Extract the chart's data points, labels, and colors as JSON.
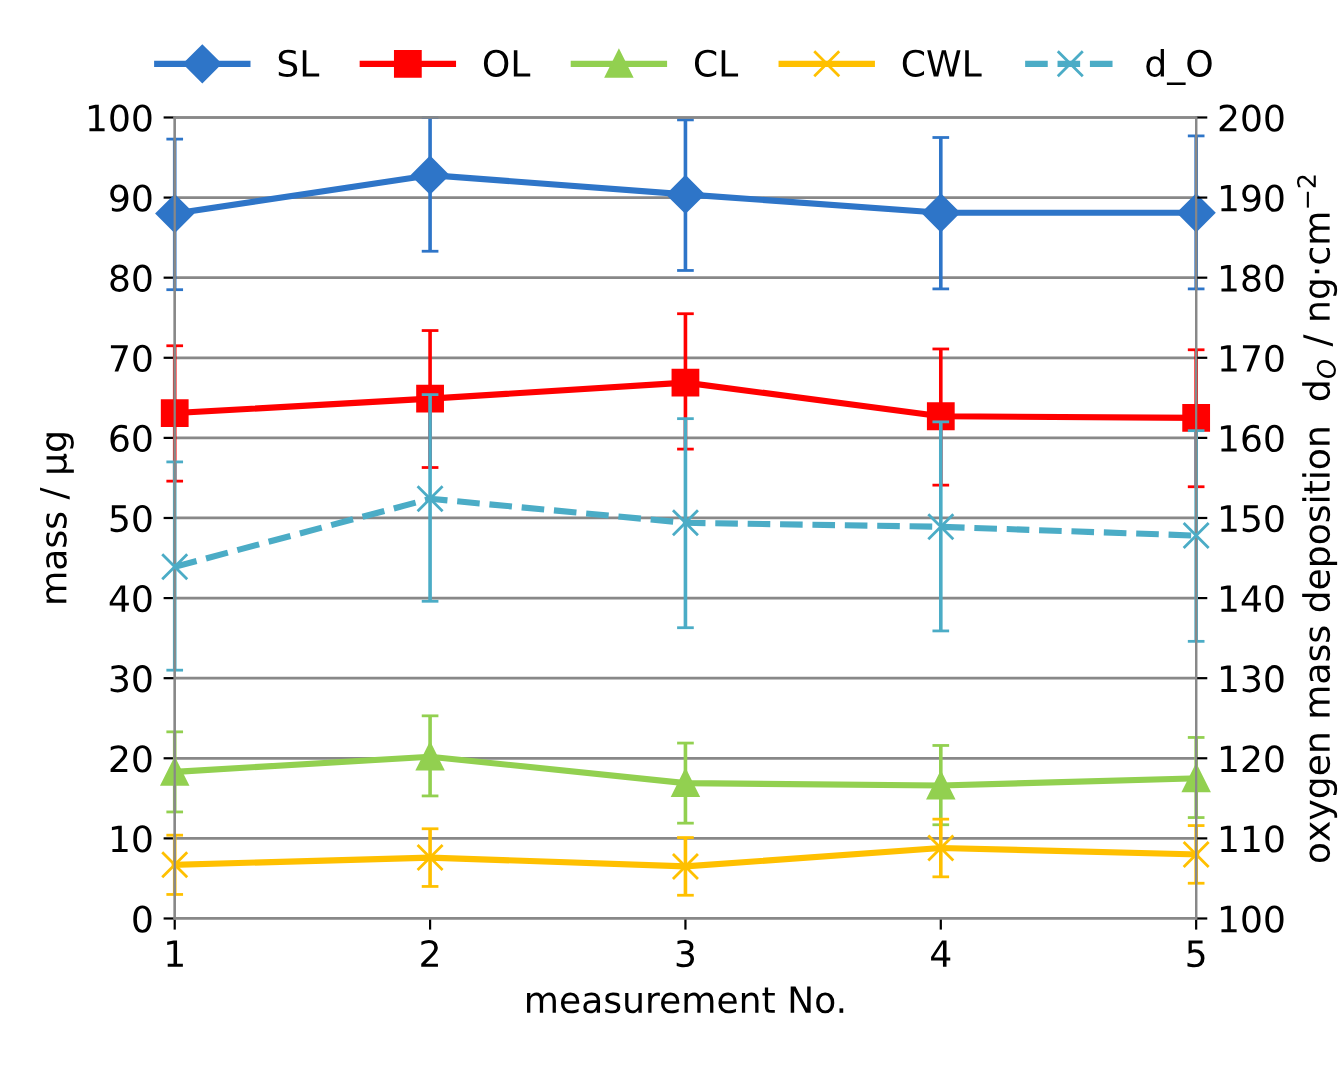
{
  "chart_data": {
    "type": "line",
    "xlabel": "measurement No.",
    "ylabel": "mass / µg",
    "y2label": "oxygen mass deposition  d$_{O}$ / ng·cm$^{−2}$",
    "x": [
      1,
      2,
      3,
      4,
      5
    ],
    "xlim": [
      1,
      5
    ],
    "xticks": [
      1,
      2,
      3,
      4,
      5
    ],
    "ylim": [
      0,
      100
    ],
    "yticks": [
      0,
      10,
      20,
      30,
      40,
      50,
      60,
      70,
      80,
      90,
      100
    ],
    "y2lim": [
      100,
      200
    ],
    "y2ticks": [
      100,
      110,
      120,
      130,
      140,
      150,
      160,
      170,
      180,
      190,
      200
    ],
    "grid": "y",
    "legend": "top",
    "line_style": "solid",
    "series": [
      {
        "name": "SL",
        "color": "#2e75c8",
        "marker": "diamond",
        "values": [
          88.0,
          92.8,
          90.4,
          88.1,
          88.1
        ],
        "errors": [
          [
            78.5,
            97.3
          ],
          [
            83.3,
            100
          ],
          [
            80.9,
            99.7
          ],
          [
            78.6,
            97.5
          ],
          [
            78.6,
            97.7
          ]
        ]
      },
      {
        "name": "OL",
        "color": "#ff0000",
        "marker": "square",
        "values": [
          63.1,
          64.9,
          66.9,
          62.7,
          62.5
        ],
        "errors": [
          [
            54.6,
            71.5
          ],
          [
            56.3,
            73.4
          ],
          [
            58.6,
            75.5
          ],
          [
            54.1,
            71.1
          ],
          [
            53.9,
            71.0
          ]
        ]
      },
      {
        "name": "CL",
        "color": "#92d050",
        "marker": "triangle",
        "values": [
          18.3,
          20.2,
          16.9,
          16.6,
          17.5
        ],
        "errors": [
          [
            13.3,
            23.3
          ],
          [
            15.3,
            25.3
          ],
          [
            11.9,
            21.9
          ],
          [
            11.7,
            21.6
          ],
          [
            12.6,
            22.6
          ]
        ]
      },
      {
        "name": "CWL",
        "color": "#ffc000",
        "marker": "cross",
        "values": [
          6.7,
          7.6,
          6.5,
          8.8,
          8.0
        ],
        "errors": [
          [
            3.0,
            10.4
          ],
          [
            4.0,
            11.2
          ],
          [
            2.9,
            10.1
          ],
          [
            5.2,
            12.4
          ],
          [
            4.4,
            11.6
          ]
        ]
      },
      {
        "name": "d_O",
        "color": "#4bacc6",
        "marker": "cross",
        "line_style": "dashed",
        "axis": "y2",
        "values": [
          143.9,
          152.4,
          149.4,
          148.9,
          147.8
        ],
        "errors": [
          [
            131.0,
            157.0
          ],
          [
            139.6,
            165.4
          ],
          [
            136.3,
            162.4
          ],
          [
            135.9,
            162.0
          ],
          [
            134.6,
            160.9
          ]
        ]
      }
    ]
  }
}
